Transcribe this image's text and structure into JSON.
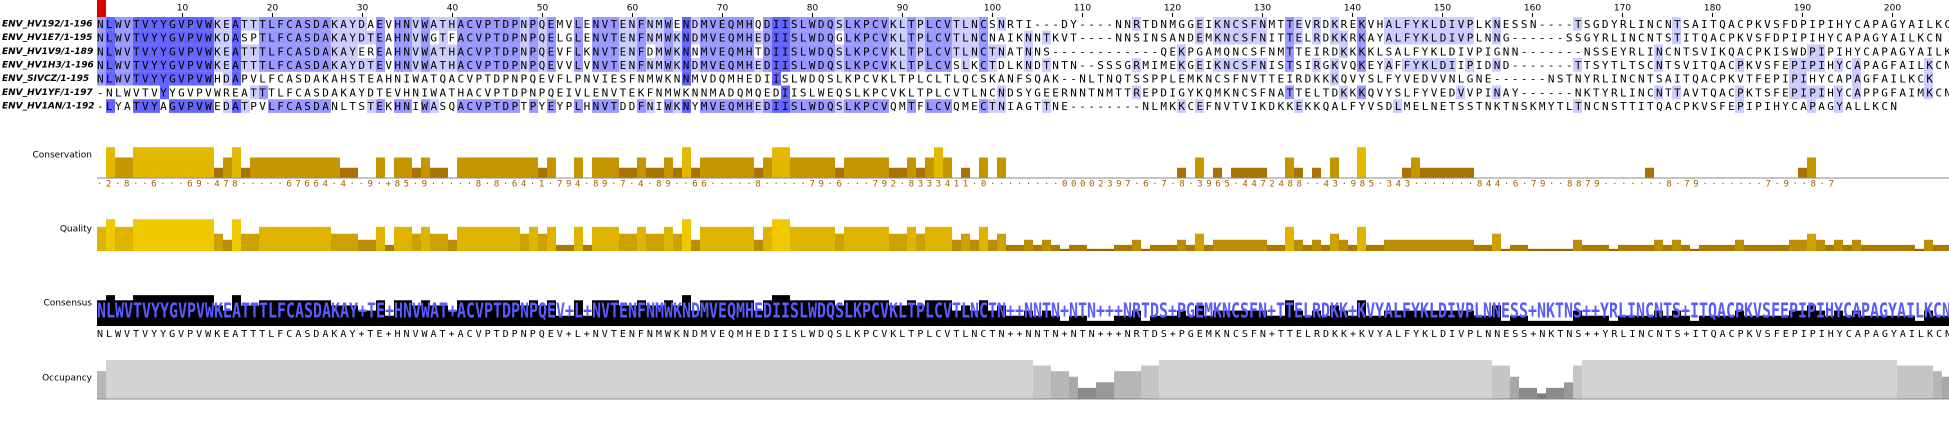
{
  "ruler": [
    10,
    20,
    30,
    40,
    50,
    60,
    70,
    80,
    90,
    100,
    110,
    120,
    130,
    140,
    150,
    160,
    170,
    180,
    190,
    200
  ],
  "sequences": [
    {
      "name": "ENV_HV192/1-196",
      "residues": "NLWVTVYYGVPVWKEATTTLFCASDAKAYDAEVHNVWATHACVPTDPNPQEMVLENVTENFNMWENDMVEQMHQDIISLWDQSLKPCVKLTPLCVTLNCSNRTI---DY----NNRTDNMGGEIKNCSFNMTTEVRDKREKVHALFYKLDIVPLKNESSN----TSGDYRLINCNTSAITQACPKVSFDPIPIHYCAPAGYAILKCN"
    },
    {
      "name": "ENV_HV1E7/1-195",
      "residues": "NLWVTVYYGVPVWKDASPTLFCASDAKAYDTEAHNVWGTFACVPTDPNPQELGLENVTENFNMWKNDMVEQMHEDIISLWDQGLKPCVKLTPLCVTLNCNAIKNNTKVT----NNSINSANDEMKNCSFNITTELRDKKRKAYALFYKLDIVPLNNG------SSGYRLINCNTSTITQACPKVSFDPIPIHYCAPAGYAILKCN"
    },
    {
      "name": "ENV_HV1V9/1-189",
      "residues": "NLWVTVYYGVPVWKEATTTLFCASDAKAYEREAHNVWATHACVPTDPNPQEVFLKNVTENFDMWKNNMVEQMHTDIISLWDQSLKPCVKLTPLCVTLNCTNATNNS------------QEKPGAMQNCSFNMTTEIRDKKKKLSALFYKLDIVPIGNN-------NSSEYRLINCNTSVIKQACPKISWDPIPIHYCAPAGYAILKCN"
    },
    {
      "name": "ENV_HV1H3/1-196",
      "residues": "NLWVTVYYGVPVWKEATTTLFCASDAKAYDTEVHNVWATHACVPTDPNPQEVVLVNVTENFNMWKNDMVEQMHEDIISLWDQSLKPCVKLTPLCVSLKCTDLKNDTNTN--SSSGRMIMEKGEIKNCSFNISTSIRGKVQKEYAFFYKLDIIPIDND-------TTSYTLTSCNTSVITQACPKVSFEPIPIHYCAPAGFAILKCN"
    },
    {
      "name": "ENV_SIVCZ/1-195",
      "residues": "NLWVTVYYGVPVWHDAPVLFCASDAKAHSTEAHNIWATQACVPTDPNPQEVFLPNVIESFNMWKNNMVDQMHEDIISLWDQSLKPCVKLTPLCLTLQCSKANFSQAK--NLTNQTSSPPLEMKNCSFNVTTEIRDKKKQVYSLFYVEDVVNLGNE------NSTNYRLINCNTSAITQACPKVTFEPIPIHYCAPAGFAILKCK"
    },
    {
      "name": "ENV_HV1YF/1-197",
      "residues": "-NLWVTVYYGVPVWREATTTLFCASDAKAYDTEVHNIWATHACVPTDPNPQEIVLENVTEKFNMWKNNMADQMQEDIISLWEQSLKPCVKLTPLCVTLNCNDSYGEERNNTNMTTREPDIGYKQMKNCSFNATTELTDKKKQVYSLFYVEDVVPINAY------NKTYRLINCNTTAVTQACPKTSFEPIPIHYCAPPGFAIMKCN"
    },
    {
      "name": "ENV_HV1AN/1-192",
      "residues": "-LYATVYAGVPVWEDATPVLFCASDANLTSTEKHNIWASQACVPTDPTPYEYPLHNVTDDFNIWKNYMVEQMHEDIISLWDQSLKPCVQMTFLCVQMECTNIAGTTNE--------NLMKKCEFNVTVIKDKKEKKQALFYVSDLMELNETSSTNKTNSKMYTLTNCNSTTITQACPKVSFEPIPIHYCAPAGYALLKCN"
    }
  ],
  "annotations": {
    "conservation": {
      "label": "Conservation",
      "text": "·2·8··6···69·478·····67664·4··9·+85·9·····8·8·64·1·794·89·7·4·89··66·····8·····79·6···792·8333411·0········00002397·6·7·8·3965·4472488··43·985·343·······844·6·79··8879·······8·79·······7·9··8·7"
    },
    "quality": {
      "label": "Quality"
    },
    "consensus": {
      "label": "Consensus",
      "text": "NLWVTVYYGVPVWKEATTTLFCASDAKAY+TE+HNVWAT+ACVPTDPNPQEV+L+NVTENFNMWKNDMVEQMHEDIISLWDQSLKPCVKLTPLCVTLNCTN++NNTN+NTN+++NRTDS+PGEMKNCSFN+TTELRDKK+KVYALFYKLDIVPLNNESS+NKTNS++YRLINCNTS+ITQACPKVSFEPIPIHYCAPAGYAILKCN"
    },
    "occupancy": {
      "label": "Occupancy"
    }
  }
}
